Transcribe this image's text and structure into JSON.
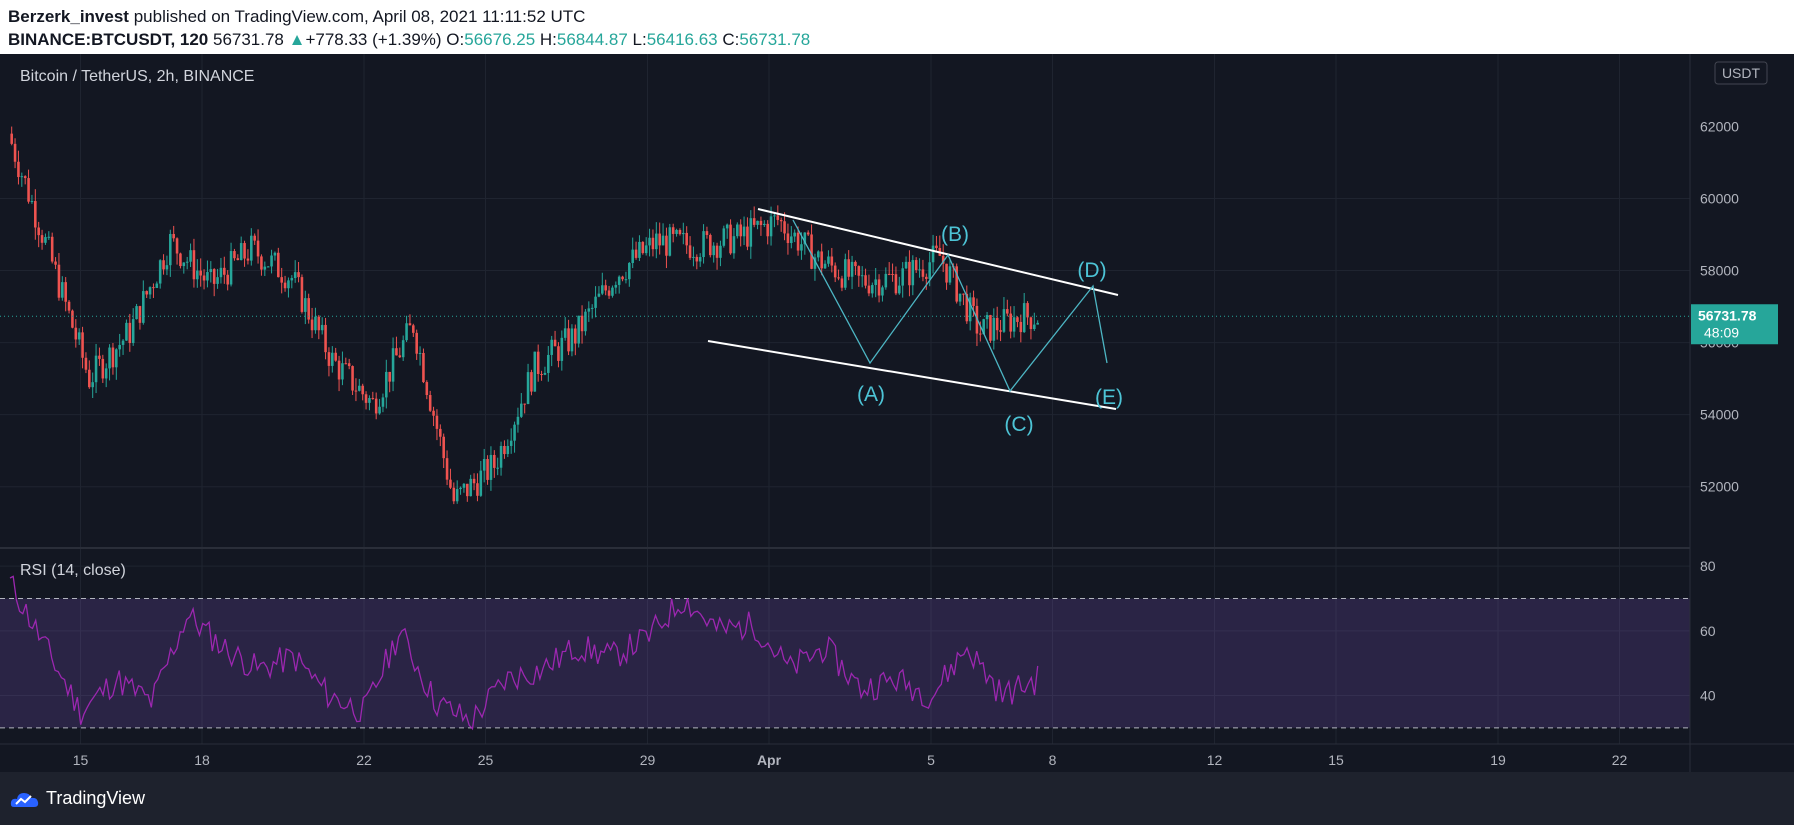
{
  "header": {
    "author": "Berzerk_invest",
    "published_text": "published on TradingView.com, April 08, 2021 11:11:52 UTC",
    "symbol": "BINANCE:BTCUSDT, 120",
    "last": "56731.78",
    "change_arrow": "▲",
    "change": "+778.33 (+1.39%)",
    "o_label": "O:",
    "o_val": "56676.25",
    "h_label": "H:",
    "h_val": "56844.87",
    "l_label": "L:",
    "l_val": "56416.63",
    "c_label": "C:",
    "c_val": "56731.78"
  },
  "chart_data": [
    {
      "type": "candlestick",
      "title": "Bitcoin / TetherUS, 2h, BINANCE",
      "currency": "USDT",
      "ylim": [
        50300,
        62900
      ],
      "yticks": [
        "60000",
        "58000",
        "56000",
        "54000",
        "52000"
      ],
      "ytick_top_partial": "62000",
      "xticks": [
        "15",
        "18",
        "22",
        "25",
        "29",
        "Apr",
        "5",
        "8",
        "12",
        "15",
        "19",
        "22"
      ],
      "last_price": "56731.78",
      "countdown": "48:09",
      "ohlc_anchors": [
        {
          "date": "Mar 14",
          "close": 61800
        },
        {
          "date": "Mar 15",
          "close": 58500
        },
        {
          "date": "Mar 16",
          "close": 55000
        },
        {
          "date": "Mar 17",
          "close": 56300
        },
        {
          "date": "Mar 18",
          "close": 58800
        },
        {
          "date": "Mar 19",
          "close": 57600
        },
        {
          "date": "Mar 20",
          "close": 58600
        },
        {
          "date": "Mar 21",
          "close": 57800
        },
        {
          "date": "Mar 22",
          "close": 55500
        },
        {
          "date": "Mar 23",
          "close": 54300
        },
        {
          "date": "Mar 24",
          "close": 56500
        },
        {
          "date": "Mar 25",
          "close": 51600
        },
        {
          "date": "Mar 26",
          "close": 52600
        },
        {
          "date": "Mar 27",
          "close": 55300
        },
        {
          "date": "Mar 28",
          "close": 56200
        },
        {
          "date": "Mar 29",
          "close": 57900
        },
        {
          "date": "Mar 30",
          "close": 58800
        },
        {
          "date": "Mar 31",
          "close": 58700
        },
        {
          "date": "Apr 1",
          "close": 58900
        },
        {
          "date": "Apr 2",
          "close": 59400
        },
        {
          "date": "Apr 3",
          "close": 58300
        },
        {
          "date": "Apr 4",
          "close": 57700
        },
        {
          "date": "Apr 5",
          "close": 57800
        },
        {
          "date": "Apr 6",
          "close": 58400
        },
        {
          "date": "Apr 7",
          "close": 56300
        },
        {
          "date": "Apr 8",
          "close": 56731.78
        }
      ],
      "annotations": {
        "wave_labels": [
          "(A)",
          "(B)",
          "(C)",
          "(D)",
          "(E)"
        ],
        "channel": "descending triangle from ~Apr 1 to ~Apr 10"
      }
    },
    {
      "type": "line",
      "title": "RSI (14, close)",
      "ylim": [
        25,
        85
      ],
      "yticks": [
        "80",
        "60",
        "40"
      ],
      "bands": [
        70,
        30
      ],
      "series_approx": [
        75,
        55,
        35,
        45,
        38,
        65,
        55,
        48,
        52,
        40,
        35,
        60,
        38,
        32,
        45,
        48,
        55,
        52,
        58,
        70,
        60,
        62,
        48,
        55,
        42,
        45,
        40,
        55,
        40,
        45
      ]
    }
  ],
  "footer": {
    "brand": "TradingView"
  }
}
